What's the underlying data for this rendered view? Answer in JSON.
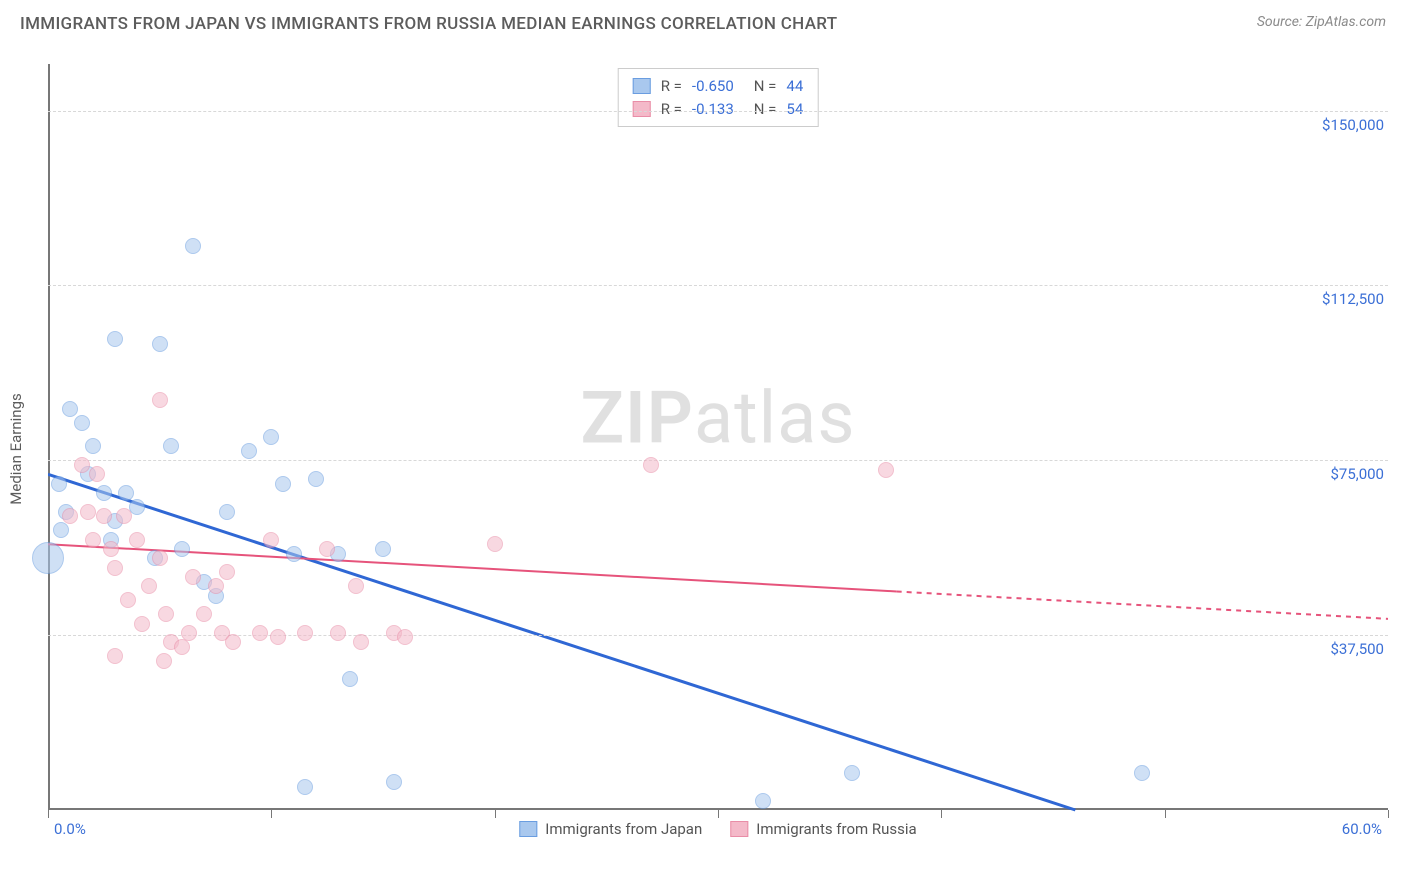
{
  "header": {
    "title": "IMMIGRANTS FROM JAPAN VS IMMIGRANTS FROM RUSSIA MEDIAN EARNINGS CORRELATION CHART",
    "source": "Source: ZipAtlas.com"
  },
  "watermark": {
    "part1": "ZIP",
    "part2": "atlas"
  },
  "chart": {
    "type": "scatter",
    "ylabel": "Median Earnings",
    "xlim": [
      0,
      60
    ],
    "ylim": [
      0,
      160000
    ],
    "xtick_positions": [
      0,
      10,
      20,
      30,
      40,
      50,
      60
    ],
    "xtick_labels": {
      "0": "0.0%",
      "60": "60.0%"
    },
    "ytick_positions": [
      37500,
      75000,
      112500,
      150000
    ],
    "ytick_labels": [
      "$37,500",
      "$75,000",
      "$112,500",
      "$150,000"
    ],
    "background_color": "#ffffff",
    "grid_color": "#d8d8d8",
    "axis_color": "#777777",
    "tick_label_color": "#3b6fd6",
    "series": [
      {
        "name": "Immigrants from Japan",
        "fill": "#a9c8ee",
        "fill_opacity": 0.55,
        "stroke": "#6a9de0",
        "R": "-0.650",
        "N": "44",
        "reg": {
          "x1": 0,
          "y1": 72000,
          "x2": 46,
          "y2": 0,
          "solid_to_x": 46,
          "color": "#2f67d4",
          "width": 3
        },
        "points": [
          {
            "x": 1.0,
            "y": 86000,
            "r": 8
          },
          {
            "x": 1.5,
            "y": 83000,
            "r": 8
          },
          {
            "x": 2.0,
            "y": 78000,
            "r": 8
          },
          {
            "x": 0.8,
            "y": 64000,
            "r": 8
          },
          {
            "x": 0.6,
            "y": 60000,
            "r": 8
          },
          {
            "x": 0.0,
            "y": 54000,
            "r": 16
          },
          {
            "x": 3.0,
            "y": 101000,
            "r": 8
          },
          {
            "x": 5.0,
            "y": 100000,
            "r": 8
          },
          {
            "x": 6.5,
            "y": 121000,
            "r": 8
          },
          {
            "x": 2.5,
            "y": 68000,
            "r": 8
          },
          {
            "x": 3.5,
            "y": 68000,
            "r": 8
          },
          {
            "x": 3.0,
            "y": 62000,
            "r": 8
          },
          {
            "x": 4.0,
            "y": 65000,
            "r": 8
          },
          {
            "x": 5.5,
            "y": 78000,
            "r": 8
          },
          {
            "x": 6.0,
            "y": 56000,
            "r": 8
          },
          {
            "x": 7.0,
            "y": 49000,
            "r": 8
          },
          {
            "x": 7.5,
            "y": 46000,
            "r": 8
          },
          {
            "x": 8.0,
            "y": 64000,
            "r": 8
          },
          {
            "x": 9.0,
            "y": 77000,
            "r": 8
          },
          {
            "x": 10.0,
            "y": 80000,
            "r": 8
          },
          {
            "x": 10.5,
            "y": 70000,
            "r": 8
          },
          {
            "x": 11.0,
            "y": 55000,
            "r": 8
          },
          {
            "x": 11.5,
            "y": 5000,
            "r": 8
          },
          {
            "x": 12.0,
            "y": 71000,
            "r": 8
          },
          {
            "x": 13.0,
            "y": 55000,
            "r": 8
          },
          {
            "x": 13.5,
            "y": 28000,
            "r": 8
          },
          {
            "x": 15.0,
            "y": 56000,
            "r": 8
          },
          {
            "x": 15.5,
            "y": 6000,
            "r": 8
          },
          {
            "x": 32.0,
            "y": 2000,
            "r": 8
          },
          {
            "x": 36.0,
            "y": 8000,
            "r": 8
          },
          {
            "x": 49.0,
            "y": 8000,
            "r": 8
          },
          {
            "x": 2.8,
            "y": 58000,
            "r": 8
          },
          {
            "x": 4.8,
            "y": 54000,
            "r": 8
          },
          {
            "x": 1.8,
            "y": 72000,
            "r": 8
          },
          {
            "x": 0.5,
            "y": 70000,
            "r": 8
          }
        ]
      },
      {
        "name": "Immigrants from Russia",
        "fill": "#f4b9c9",
        "fill_opacity": 0.55,
        "stroke": "#e98da7",
        "R": "-0.133",
        "N": "54",
        "reg": {
          "x1": 0,
          "y1": 57000,
          "x2": 60,
          "y2": 41000,
          "solid_to_x": 38,
          "color": "#e6537b",
          "width": 2
        },
        "points": [
          {
            "x": 5.0,
            "y": 88000,
            "r": 8
          },
          {
            "x": 1.5,
            "y": 74000,
            "r": 8
          },
          {
            "x": 2.2,
            "y": 72000,
            "r": 8
          },
          {
            "x": 1.0,
            "y": 63000,
            "r": 8
          },
          {
            "x": 1.8,
            "y": 64000,
            "r": 8
          },
          {
            "x": 2.5,
            "y": 63000,
            "r": 8
          },
          {
            "x": 2.0,
            "y": 58000,
            "r": 8
          },
          {
            "x": 2.8,
            "y": 56000,
            "r": 8
          },
          {
            "x": 3.0,
            "y": 52000,
            "r": 8
          },
          {
            "x": 3.4,
            "y": 63000,
            "r": 8
          },
          {
            "x": 3.6,
            "y": 45000,
            "r": 8
          },
          {
            "x": 3.0,
            "y": 33000,
            "r": 8
          },
          {
            "x": 4.0,
            "y": 58000,
            "r": 8
          },
          {
            "x": 4.5,
            "y": 48000,
            "r": 8
          },
          {
            "x": 4.2,
            "y": 40000,
            "r": 8
          },
          {
            "x": 5.0,
            "y": 54000,
            "r": 8
          },
          {
            "x": 5.3,
            "y": 42000,
            "r": 8
          },
          {
            "x": 5.5,
            "y": 36000,
            "r": 8
          },
          {
            "x": 5.2,
            "y": 32000,
            "r": 8
          },
          {
            "x": 6.5,
            "y": 50000,
            "r": 8
          },
          {
            "x": 6.0,
            "y": 35000,
            "r": 8
          },
          {
            "x": 6.3,
            "y": 38000,
            "r": 8
          },
          {
            "x": 7.0,
            "y": 42000,
            "r": 8
          },
          {
            "x": 7.5,
            "y": 48000,
            "r": 8
          },
          {
            "x": 7.8,
            "y": 38000,
            "r": 8
          },
          {
            "x": 8.0,
            "y": 51000,
            "r": 8
          },
          {
            "x": 8.3,
            "y": 36000,
            "r": 8
          },
          {
            "x": 9.5,
            "y": 38000,
            "r": 8
          },
          {
            "x": 10.0,
            "y": 58000,
            "r": 8
          },
          {
            "x": 10.3,
            "y": 37000,
            "r": 8
          },
          {
            "x": 11.5,
            "y": 38000,
            "r": 8
          },
          {
            "x": 12.5,
            "y": 56000,
            "r": 8
          },
          {
            "x": 13.0,
            "y": 38000,
            "r": 8
          },
          {
            "x": 13.8,
            "y": 48000,
            "r": 8
          },
          {
            "x": 14.0,
            "y": 36000,
            "r": 8
          },
          {
            "x": 15.5,
            "y": 38000,
            "r": 8
          },
          {
            "x": 16.0,
            "y": 37000,
            "r": 8
          },
          {
            "x": 20.0,
            "y": 57000,
            "r": 8
          },
          {
            "x": 27.0,
            "y": 74000,
            "r": 8
          },
          {
            "x": 37.5,
            "y": 73000,
            "r": 8
          }
        ]
      }
    ]
  },
  "legend_top_labels": {
    "R": "R =",
    "N": "N ="
  }
}
